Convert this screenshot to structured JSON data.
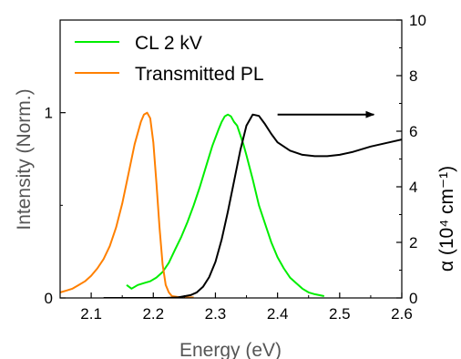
{
  "chart_data": {
    "type": "line",
    "xlabel": "Energy (eV)",
    "ylabel_left": "Intensity (Norm.)",
    "ylabel_right": "α (10⁴ cm⁻¹)",
    "xlim": [
      2.05,
      2.6
    ],
    "ylim_left": [
      0,
      1.5
    ],
    "ylim_right": [
      0,
      10
    ],
    "x_ticks": [
      "2.1",
      "2.2",
      "2.3",
      "2.4",
      "2.5",
      "2.6"
    ],
    "y_left_ticks": [
      "0",
      "1"
    ],
    "y_right_ticks": [
      "0",
      "2",
      "4",
      "6",
      "8",
      "10"
    ],
    "grid": false,
    "legend_position": "top-left",
    "series": [
      {
        "name": "CL 2 kV",
        "axis": "left",
        "color": "#00ee00",
        "x": [
          2.157,
          2.165,
          2.175,
          2.185,
          2.195,
          2.205,
          2.215,
          2.225,
          2.235,
          2.245,
          2.255,
          2.265,
          2.275,
          2.285,
          2.295,
          2.305,
          2.31,
          2.315,
          2.32,
          2.325,
          2.33,
          2.335,
          2.34,
          2.345,
          2.35,
          2.36,
          2.37,
          2.38,
          2.39,
          2.4,
          2.41,
          2.42,
          2.43,
          2.44,
          2.45,
          2.46,
          2.475
        ],
        "y": [
          0.07,
          0.05,
          0.07,
          0.08,
          0.09,
          0.11,
          0.14,
          0.19,
          0.26,
          0.33,
          0.41,
          0.5,
          0.6,
          0.71,
          0.82,
          0.91,
          0.95,
          0.98,
          0.99,
          0.98,
          0.95,
          0.93,
          0.88,
          0.83,
          0.77,
          0.64,
          0.5,
          0.4,
          0.3,
          0.22,
          0.16,
          0.11,
          0.08,
          0.05,
          0.03,
          0.02,
          0.01
        ]
      },
      {
        "name": "Transmitted PL",
        "axis": "left",
        "color": "#ff8000",
        "x": [
          2.05,
          2.06,
          2.07,
          2.08,
          2.09,
          2.1,
          2.11,
          2.12,
          2.13,
          2.14,
          2.15,
          2.16,
          2.17,
          2.18,
          2.185,
          2.19,
          2.195,
          2.2,
          2.205,
          2.21,
          2.215,
          2.22,
          2.225,
          2.23,
          2.24,
          2.25,
          2.265
        ],
        "y": [
          0.03,
          0.04,
          0.05,
          0.07,
          0.09,
          0.12,
          0.16,
          0.21,
          0.28,
          0.38,
          0.51,
          0.67,
          0.83,
          0.95,
          0.99,
          1.0,
          0.97,
          0.84,
          0.62,
          0.38,
          0.18,
          0.07,
          0.03,
          0.01,
          0.005,
          0.003,
          0.003
        ]
      },
      {
        "name": "",
        "axis": "right",
        "color": "#000000",
        "x": [
          2.12,
          2.18,
          2.22,
          2.24,
          2.26,
          2.27,
          2.28,
          2.29,
          2.3,
          2.31,
          2.32,
          2.33,
          2.34,
          2.35,
          2.36,
          2.37,
          2.38,
          2.39,
          2.4,
          2.42,
          2.44,
          2.46,
          2.48,
          2.5,
          2.52,
          2.55,
          2.58,
          2.6
        ],
        "y": [
          0.0,
          0.0,
          0.0,
          0.02,
          0.1,
          0.2,
          0.4,
          0.75,
          1.3,
          2.1,
          3.1,
          4.2,
          5.3,
          6.2,
          6.6,
          6.55,
          6.25,
          5.9,
          5.6,
          5.3,
          5.15,
          5.1,
          5.1,
          5.15,
          5.25,
          5.45,
          5.6,
          5.7
        ]
      }
    ],
    "annotations": [
      {
        "type": "arrow",
        "direction": "right",
        "x_start": 2.4,
        "x_end": 2.555,
        "y_right": 6.6
      }
    ]
  }
}
